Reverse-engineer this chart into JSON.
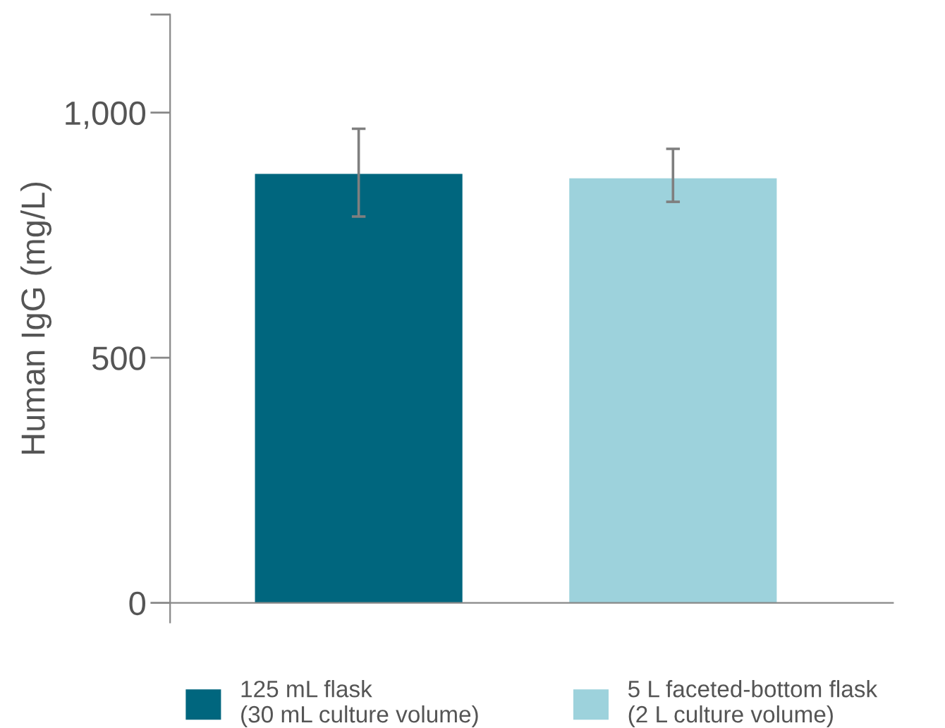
{
  "chart_data": {
    "type": "bar",
    "ylabel": "Human IgG (mg/L)",
    "categories": [
      null,
      null
    ],
    "series": [
      {
        "name": "125 mL flask\n(30 mL culture volume)",
        "color": "#00667e",
        "values": [
          875,
          null
        ],
        "errors": [
          [
            788,
            967
          ],
          null
        ]
      },
      {
        "name": "5 L faceted-bottom flask\n(2 L culture volume)",
        "color": "#9dd2dc",
        "values": [
          null,
          866
        ],
        "errors": [
          null,
          [
            818,
            926
          ]
        ]
      }
    ],
    "ylim": [
      -40,
      1200
    ],
    "yticks": [
      0,
      500,
      {
        "value": 1000,
        "label": "1,000"
      },
      {
        "value": 1200,
        "label": null
      }
    ],
    "legend": "bottom"
  }
}
